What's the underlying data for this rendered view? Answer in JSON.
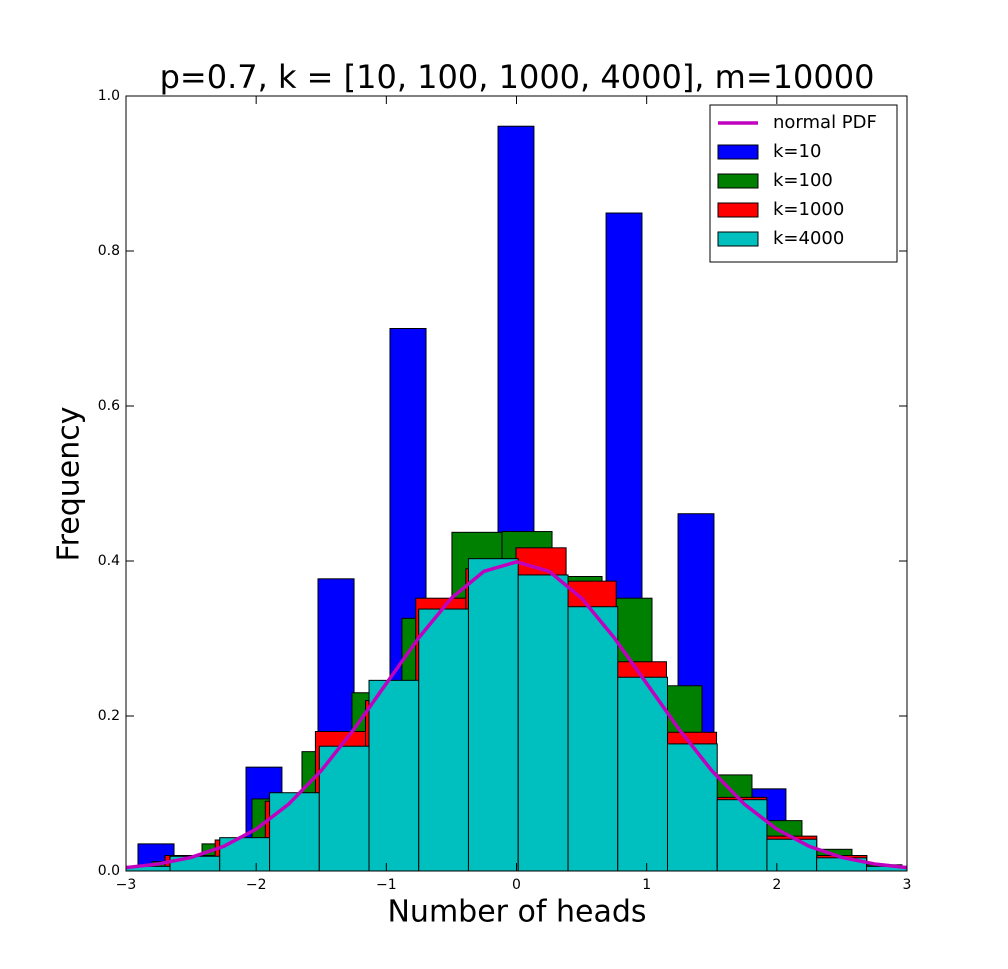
{
  "chart_data": {
    "type": "histogram",
    "title": "p=0.7, k = [10, 100, 1000, 4000], m=10000",
    "xlabel": "Number of heads",
    "ylabel": "Frequency",
    "xlim": [
      -3,
      3
    ],
    "ylim": [
      0,
      1
    ],
    "xticks": [
      {
        "value": -3,
        "label": "−3"
      },
      {
        "value": -2,
        "label": "−2"
      },
      {
        "value": -1,
        "label": "−1"
      },
      0,
      1,
      2,
      3
    ],
    "yticks": [
      {
        "value": 0,
        "label": "0.0"
      },
      0.2,
      0.4,
      0.6,
      0.8,
      {
        "value": 1,
        "label": "1.0"
      }
    ],
    "legend": "upper right",
    "series": [
      {
        "name": "normal PDF",
        "color": "#bf00bf",
        "x": [
          -3,
          -2.75,
          -2.5,
          -2.25,
          -2,
          -1.75,
          -1.5,
          -1.25,
          -1,
          -0.75,
          -0.5,
          -0.25,
          0,
          0.25,
          0.5,
          0.75,
          1,
          1.25,
          1.5,
          1.75,
          2,
          2.25,
          2.5,
          2.75,
          3
        ],
        "values": [
          0.0044,
          0.0091,
          0.0175,
          0.0317,
          0.054,
          0.0863,
          0.1295,
          0.1826,
          0.242,
          0.3011,
          0.3521,
          0.3867,
          0.3989,
          0.3867,
          0.3521,
          0.3011,
          0.242,
          0.1826,
          0.1295,
          0.0863,
          0.054,
          0.0317,
          0.0175,
          0.0091,
          0.0044
        ]
      },
      {
        "name": "k=10",
        "color": "#0000ff",
        "bins": [
          -2.908,
          -2.631,
          -2.355,
          -2.078,
          -1.802,
          -1.525,
          -1.248,
          -0.972,
          -0.695,
          -0.419,
          -0.142,
          0.134,
          0.411,
          0.688,
          0.964,
          1.241,
          1.517,
          1.794,
          2.07
        ],
        "values": [
          0.035,
          0,
          0,
          0.134,
          0,
          0.377,
          0,
          0.7,
          0,
          0,
          0.961,
          0,
          0,
          0.849,
          0,
          0.461,
          0,
          0.106
        ]
      },
      {
        "name": "k=100",
        "color": "#008000",
        "bins": [
          -2.8,
          -2.416,
          -2.032,
          -1.648,
          -1.264,
          -0.88,
          -0.496,
          -0.111,
          0.273,
          0.657,
          1.041,
          1.425,
          1.809,
          2.193,
          2.577,
          2.961
        ],
        "values": [
          0.012,
          0.035,
          0.093,
          0.154,
          0.23,
          0.326,
          0.437,
          0.438,
          0.38,
          0.352,
          0.239,
          0.124,
          0.065,
          0.028,
          0.008
        ]
      },
      {
        "name": "k=1000",
        "color": "#ff0000",
        "bins": [
          -2.7,
          -2.315,
          -1.93,
          -1.545,
          -1.16,
          -0.774,
          -0.389,
          -0.004,
          0.381,
          0.766,
          1.152,
          1.537,
          1.922,
          2.307,
          2.692
        ],
        "values": [
          0.02,
          0.04,
          0.09,
          0.18,
          0.22,
          0.352,
          0.39,
          0.417,
          0.374,
          0.27,
          0.179,
          0.095,
          0.045,
          0.02
        ]
      },
      {
        "name": "k=4000",
        "color": "#00bfbf",
        "bins": [
          -3.044,
          -2.662,
          -2.28,
          -1.897,
          -1.515,
          -1.133,
          -0.751,
          -0.369,
          0.013,
          0.396,
          0.778,
          1.16,
          1.542,
          1.924,
          2.306,
          2.689,
          3.071
        ],
        "values": [
          0.006,
          0.019,
          0.043,
          0.101,
          0.161,
          0.246,
          0.338,
          0.403,
          0.382,
          0.341,
          0.25,
          0.164,
          0.092,
          0.041,
          0.017,
          0.006
        ]
      }
    ]
  }
}
